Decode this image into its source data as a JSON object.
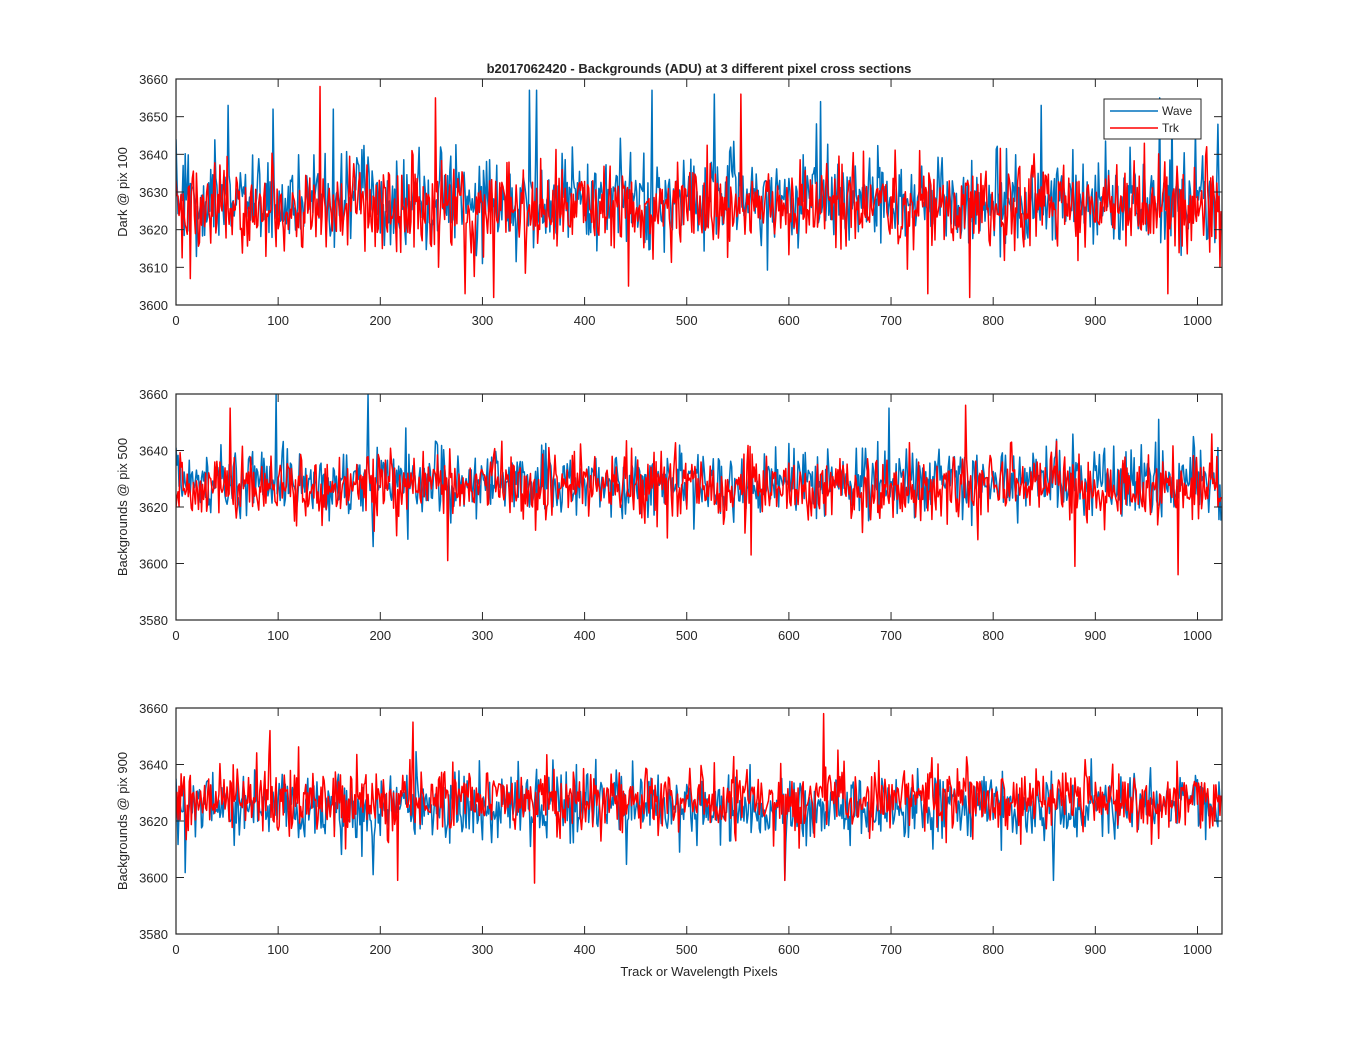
{
  "figure": {
    "title": "b2017062420 - Backgrounds (ADU) at 3 different pixel cross sections",
    "xlabel": "Track or Wavelength Pixels",
    "colors": {
      "Wave": "#0072BD",
      "Trk": "#FF0000"
    }
  },
  "chart_data": [
    {
      "type": "line",
      "ylabel": "Dark @ pix 100",
      "xlim": [
        0,
        1024
      ],
      "ylim": [
        3600,
        3660
      ],
      "xticks": [
        0,
        100,
        200,
        300,
        400,
        500,
        600,
        700,
        800,
        900,
        1000
      ],
      "yticks": [
        3600,
        3610,
        3620,
        3630,
        3640,
        3650,
        3660
      ],
      "legend": {
        "placement": "top-right"
      },
      "series": [
        {
          "name": "Wave",
          "color": "#0072BD",
          "n": 1024,
          "mean": 3628,
          "std": 7,
          "highlights": [
            [
              0,
              3644
            ],
            [
              51,
              3653
            ],
            [
              95,
              3652
            ],
            [
              154,
              3652
            ],
            [
              300,
              3611
            ],
            [
              346,
              3657
            ],
            [
              353,
              3657
            ],
            [
              466,
              3657
            ],
            [
              527,
              3656
            ],
            [
              631,
              3654
            ],
            [
              847,
              3653
            ],
            [
              963,
              3655
            ],
            [
              975,
              3652
            ],
            [
              1020,
              3648
            ]
          ]
        },
        {
          "name": "Trk",
          "color": "#FF0000",
          "n": 1024,
          "mean": 3626,
          "std": 7,
          "highlights": [
            [
              0,
              3633
            ],
            [
              14,
              3607
            ],
            [
              141,
              3658
            ],
            [
              254,
              3655
            ],
            [
              283,
              3603
            ],
            [
              311,
              3602
            ],
            [
              443,
              3605
            ],
            [
              553,
              3656
            ],
            [
              736,
              3603
            ],
            [
              777,
              3602
            ],
            [
              971,
              3603
            ],
            [
              1022,
              3610
            ]
          ]
        }
      ]
    },
    {
      "type": "line",
      "ylabel": "Backgrounds @ pix 500",
      "xlim": [
        0,
        1024
      ],
      "ylim": [
        3580,
        3660
      ],
      "xticks": [
        0,
        100,
        200,
        300,
        400,
        500,
        600,
        700,
        800,
        900,
        1000
      ],
      "yticks": [
        3580,
        3600,
        3620,
        3640,
        3660
      ],
      "series": [
        {
          "name": "Wave",
          "color": "#0072BD",
          "n": 1024,
          "mean": 3629,
          "std": 7,
          "highlights": [
            [
              0,
              3641
            ],
            [
              98,
              3660
            ],
            [
              188,
              3660
            ],
            [
              193,
              3606
            ],
            [
              698,
              3655
            ],
            [
              962,
              3651
            ],
            [
              1020,
              3641
            ]
          ]
        },
        {
          "name": "Trk",
          "color": "#FF0000",
          "n": 1024,
          "mean": 3627,
          "std": 7,
          "highlights": [
            [
              0,
              3620
            ],
            [
              53,
              3655
            ],
            [
              266,
              3601
            ],
            [
              563,
              3603
            ],
            [
              773,
              3656
            ],
            [
              880,
              3599
            ],
            [
              981,
              3596
            ],
            [
              1022,
              3622
            ]
          ]
        }
      ]
    },
    {
      "type": "line",
      "ylabel": "Backgrounds @ pix 900",
      "xlim": [
        0,
        1024
      ],
      "ylim": [
        3580,
        3660
      ],
      "xticks": [
        0,
        100,
        200,
        300,
        400,
        500,
        600,
        700,
        800,
        900,
        1000
      ],
      "yticks": [
        3580,
        3600,
        3620,
        3640,
        3660
      ],
      "series": [
        {
          "name": "Wave",
          "color": "#0072BD",
          "n": 1024,
          "mean": 3625,
          "std": 7,
          "highlights": [
            [
              0,
              3635
            ],
            [
              193,
              3601
            ],
            [
              596,
              3599
            ],
            [
              859,
              3599
            ],
            [
              1020,
              3618
            ]
          ]
        },
        {
          "name": "Trk",
          "color": "#FF0000",
          "n": 1024,
          "mean": 3628,
          "std": 7,
          "highlights": [
            [
              0,
              3621
            ],
            [
              92,
              3652
            ],
            [
              217,
              3599
            ],
            [
              232,
              3655
            ],
            [
              351,
              3598
            ],
            [
              596,
              3599
            ],
            [
              634,
              3658
            ],
            [
              1022,
              3622
            ]
          ]
        }
      ]
    }
  ]
}
